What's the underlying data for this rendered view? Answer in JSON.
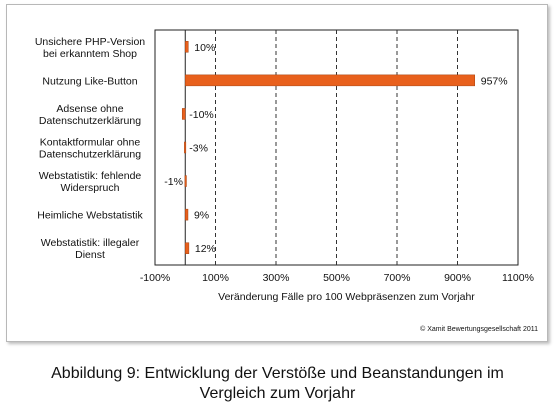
{
  "chart_data": {
    "type": "bar",
    "orientation": "horizontal",
    "categories": [
      "Unsichere PHP-Version bei erkanntem Shop",
      "Nutzung Like-Button",
      "Adsense ohne Datenschutzerklärung",
      "Kontaktformular ohne Datenschutzerklärung",
      "Webstatistik: fehlende Widerspruch",
      "Heimliche Webstatistik",
      "Webstatistik: illegaler Dienst"
    ],
    "values": [
      10,
      957,
      -10,
      -3,
      -1,
      9,
      12
    ],
    "data_labels": [
      "10%",
      "957%",
      "-10%",
      "-3%",
      "-1%",
      "9%",
      "12%"
    ],
    "xlabel": "Veränderung Fälle pro 100 Webpräsenzen zum Vorjahr",
    "xlim": [
      -100,
      1100
    ],
    "xticks": [
      -100,
      100,
      300,
      500,
      700,
      900,
      1100
    ],
    "xtick_labels": [
      "-100%",
      "100%",
      "300%",
      "500%",
      "700%",
      "900%",
      "1100%"
    ],
    "grid": "vertical dashed",
    "bar_color": "#e8601c",
    "copyright": "© Xamit Bewertungsgesellschaft 2011"
  },
  "caption": {
    "line1": "Abbildung 9: Entwicklung der Verstöße und Beanstandungen im",
    "line2": "Vergleich zum Vorjahr"
  }
}
